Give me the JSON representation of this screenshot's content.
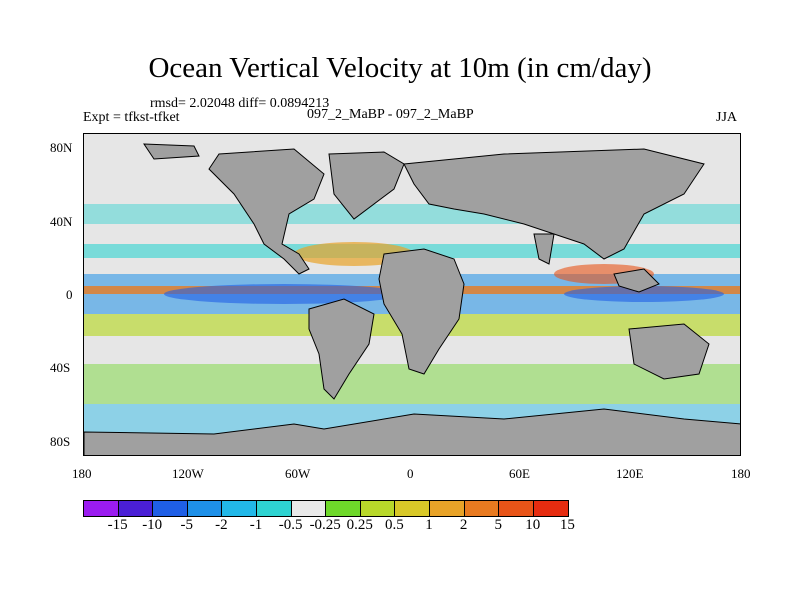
{
  "title": "Ocean Vertical Velocity at 10m (in cm/day)",
  "stats": "rmsd= 2.02048 diff= 0.0894213",
  "experiment": "Expt = tfkst-tfket",
  "center_label": "097_2_MaBP - 097_2_MaBP",
  "season": "JJA",
  "colors": {
    "land": "#a0a0a0",
    "ocean_neutral": "#e6e6e6",
    "frame": "#000000"
  },
  "latitude_ticks": [
    "80N",
    "40N",
    "0",
    "40S",
    "80S"
  ],
  "longitude_ticks": [
    "180",
    "120W",
    "60W",
    "0",
    "60E",
    "120E",
    "180"
  ],
  "colorbar": {
    "swatch_colors": [
      "#9b1cf0",
      "#4a1fd6",
      "#1f5fe6",
      "#1e90e8",
      "#22b8e8",
      "#2ed3d1",
      "#e9e9e9",
      "#6ed82a",
      "#b8d82a",
      "#d8c828",
      "#e8a328",
      "#e87a20",
      "#e85418",
      "#e62c10"
    ],
    "labels": [
      "-15",
      "-10",
      "-5",
      "-2",
      "-1",
      "-0.5",
      "-0.25",
      "0.25",
      "0.5",
      "1",
      "2",
      "5",
      "10",
      "15"
    ]
  }
}
